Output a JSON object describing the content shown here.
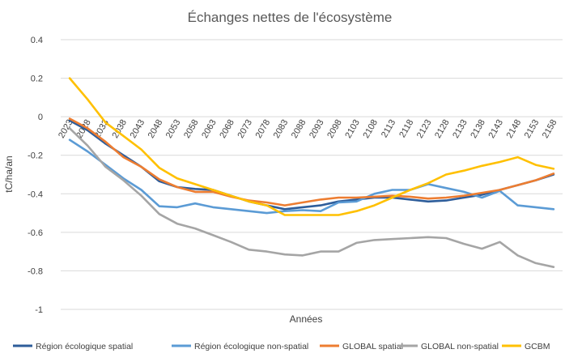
{
  "chart_data": {
    "type": "line",
    "title": "Échanges nettes de l'écosystème",
    "xlabel": "Années",
    "ylabel": "tC/ha/an",
    "ylim": [
      -1,
      0.4
    ],
    "yticks": [
      0.4,
      0.2,
      0,
      -0.2,
      -0.4,
      -0.6,
      -0.8,
      -1
    ],
    "ytick_labels": [
      "0.4",
      "0.2",
      "0",
      "-0.2",
      "-0.4",
      "-0.6",
      "-0.8",
      "-1"
    ],
    "grid": "horizontal",
    "legend_position": "bottom",
    "categories": [
      "2023",
      "2028",
      "2033",
      "2038",
      "2043",
      "2048",
      "2053",
      "2058",
      "2063",
      "2068",
      "2073",
      "2078",
      "2083",
      "2088",
      "2093",
      "2098",
      "2103",
      "2108",
      "2113",
      "2118",
      "2123",
      "2128",
      "2133",
      "2138",
      "2143",
      "2148",
      "2153",
      "2158"
    ],
    "series": [
      {
        "name": "Région écologique spatial",
        "color": "#2e5d9a",
        "values": [
          -0.02,
          -0.07,
          -0.14,
          -0.2,
          -0.26,
          -0.335,
          -0.365,
          -0.375,
          -0.38,
          -0.41,
          -0.44,
          -0.46,
          -0.48,
          -0.47,
          -0.46,
          -0.44,
          -0.43,
          -0.42,
          -0.42,
          -0.43,
          -0.44,
          -0.435,
          -0.42,
          -0.405,
          -0.38,
          -0.355,
          -0.33,
          -0.3
        ]
      },
      {
        "name": "Région écologique non-spatial",
        "color": "#5b9bd5",
        "values": [
          -0.12,
          -0.18,
          -0.25,
          -0.32,
          -0.38,
          -0.465,
          -0.47,
          -0.45,
          -0.47,
          -0.48,
          -0.49,
          -0.5,
          -0.49,
          -0.485,
          -0.49,
          -0.445,
          -0.44,
          -0.4,
          -0.38,
          -0.38,
          -0.35,
          -0.37,
          -0.39,
          -0.42,
          -0.385,
          -0.46,
          -0.47,
          -0.48
        ]
      },
      {
        "name": "GLOBAL spatial",
        "color": "#ed7d31",
        "values": [
          -0.01,
          -0.06,
          -0.13,
          -0.21,
          -0.26,
          -0.325,
          -0.365,
          -0.39,
          -0.39,
          -0.415,
          -0.435,
          -0.445,
          -0.46,
          -0.445,
          -0.43,
          -0.42,
          -0.42,
          -0.415,
          -0.41,
          -0.415,
          -0.425,
          -0.42,
          -0.41,
          -0.395,
          -0.38,
          -0.355,
          -0.33,
          -0.295
        ]
      },
      {
        "name": "GLOBAL non-spatial",
        "color": "#a5a5a5",
        "values": [
          -0.06,
          -0.15,
          -0.26,
          -0.33,
          -0.41,
          -0.505,
          -0.555,
          -0.58,
          -0.615,
          -0.65,
          -0.69,
          -0.7,
          -0.715,
          -0.72,
          -0.7,
          -0.7,
          -0.655,
          -0.64,
          -0.635,
          -0.63,
          -0.625,
          -0.63,
          -0.66,
          -0.685,
          -0.65,
          -0.72,
          -0.76,
          -0.78
        ]
      },
      {
        "name": "GCBM",
        "color": "#ffc000",
        "values": [
          0.2,
          0.09,
          -0.03,
          -0.1,
          -0.17,
          -0.265,
          -0.32,
          -0.35,
          -0.38,
          -0.41,
          -0.44,
          -0.46,
          -0.51,
          -0.51,
          -0.51,
          -0.51,
          -0.49,
          -0.46,
          -0.42,
          -0.38,
          -0.345,
          -0.3,
          -0.28,
          -0.255,
          -0.235,
          -0.21,
          -0.25,
          -0.27
        ]
      }
    ]
  }
}
